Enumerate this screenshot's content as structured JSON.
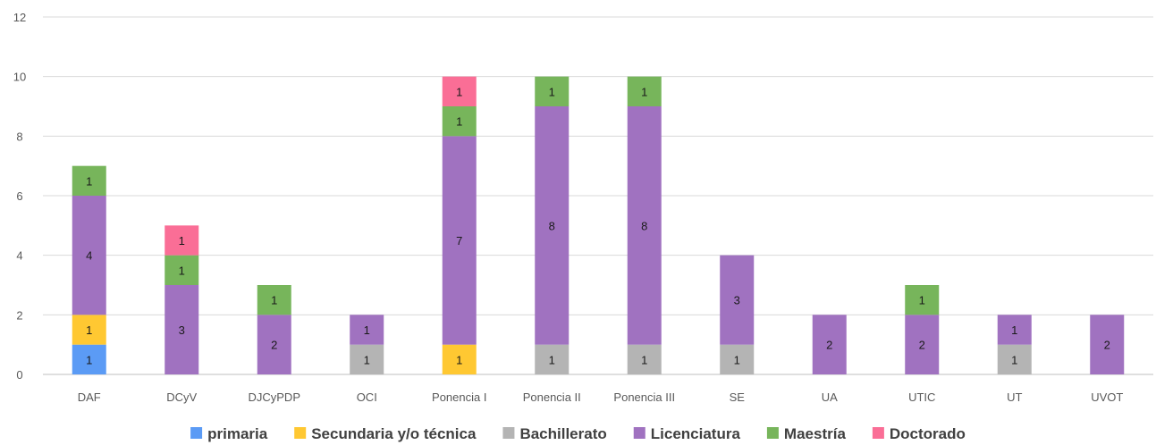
{
  "chart_data": {
    "type": "bar",
    "stacked": true,
    "title": "",
    "xlabel": "",
    "ylabel": "",
    "ylim": [
      0,
      12
    ],
    "yticks": [
      0,
      2,
      4,
      6,
      8,
      10,
      12
    ],
    "grid": true,
    "legend_position": "bottom",
    "categories": [
      "DAF",
      "DCyV",
      "DJCyPDP",
      "OCI",
      "Ponencia I",
      "Ponencia II",
      "Ponencia III",
      "SE",
      "UA",
      "UTIC",
      "UT",
      "UVOT"
    ],
    "series": [
      {
        "name": "primaria",
        "color": "#5b9bf5",
        "values": [
          1,
          0,
          0,
          0,
          0,
          0,
          0,
          0,
          0,
          0,
          0,
          0
        ]
      },
      {
        "name": "Secundaria y/o técnica",
        "color": "#ffc832",
        "values": [
          1,
          0,
          0,
          0,
          1,
          0,
          0,
          0,
          0,
          0,
          0,
          0
        ]
      },
      {
        "name": "Bachillerato",
        "color": "#b4b4b4",
        "values": [
          0,
          0,
          0,
          1,
          0,
          1,
          1,
          1,
          0,
          0,
          1,
          0
        ]
      },
      {
        "name": "Licenciatura",
        "color": "#a072c0",
        "values": [
          4,
          3,
          2,
          1,
          7,
          8,
          8,
          3,
          2,
          2,
          1,
          2
        ]
      },
      {
        "name": "Maestría",
        "color": "#77b55b",
        "values": [
          1,
          1,
          1,
          0,
          1,
          1,
          1,
          0,
          0,
          1,
          0,
          0
        ]
      },
      {
        "name": "Doctorado",
        "color": "#fa6e96",
        "values": [
          0,
          1,
          0,
          0,
          1,
          0,
          0,
          0,
          0,
          0,
          0,
          0
        ]
      }
    ]
  }
}
